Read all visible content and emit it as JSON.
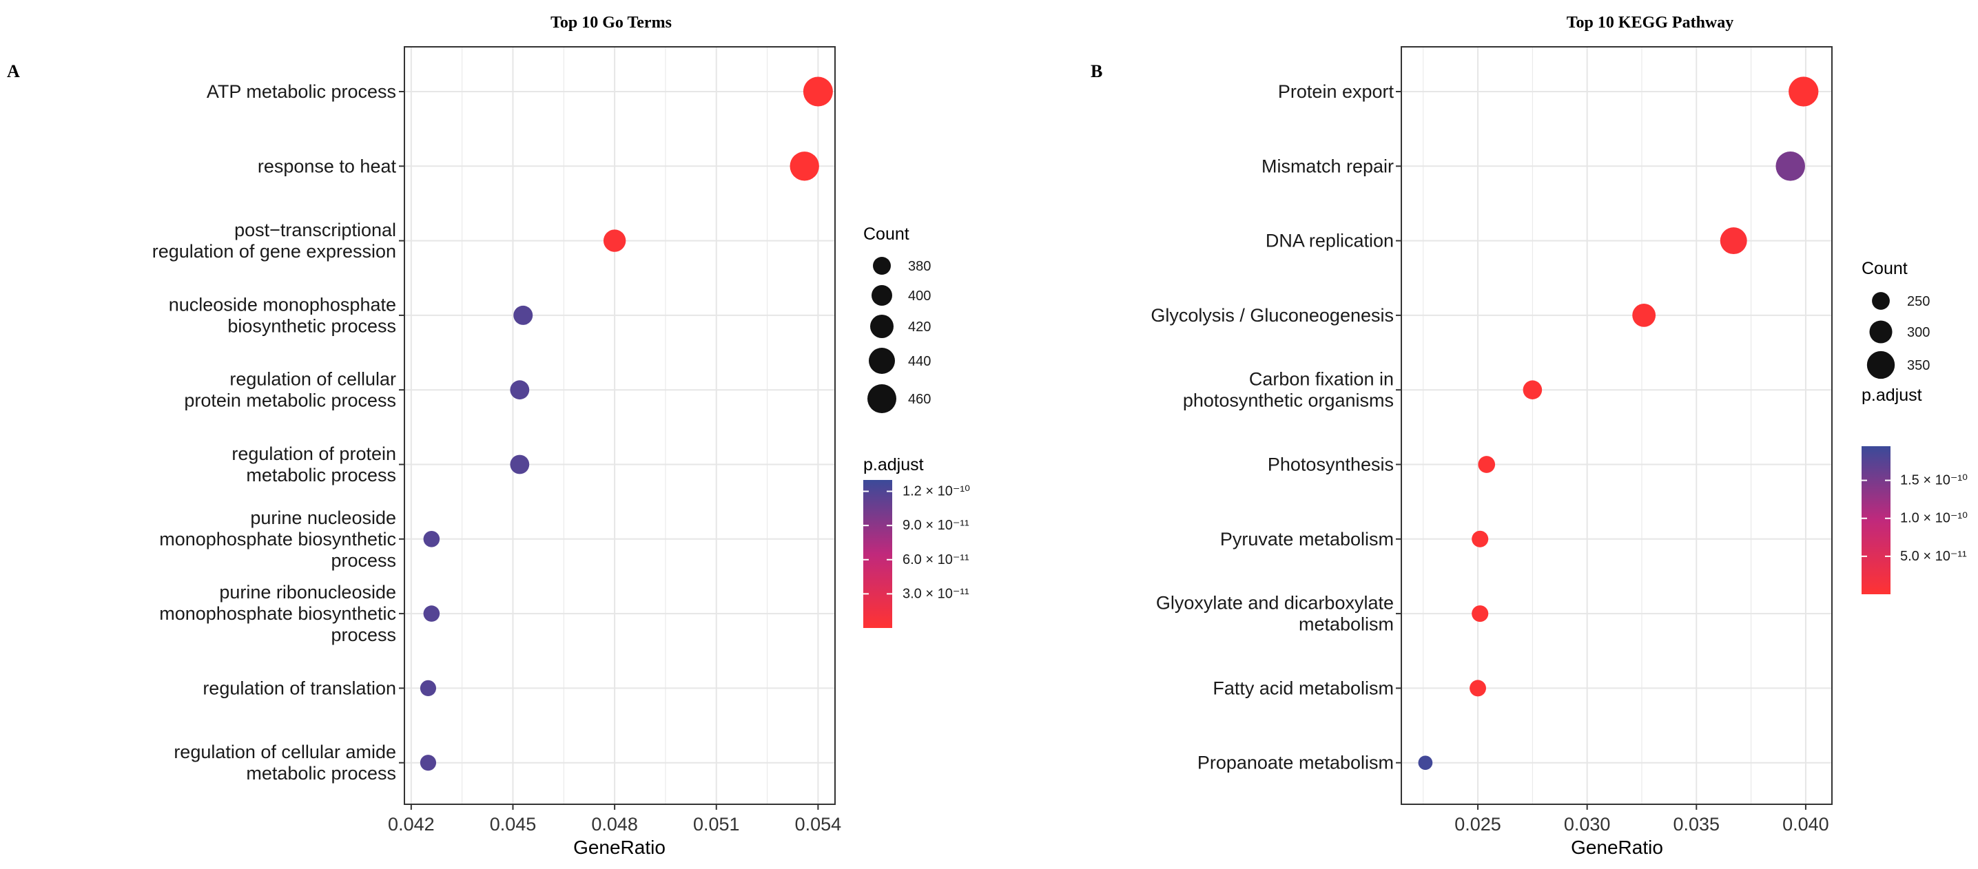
{
  "chart_data": [
    {
      "type": "scatter",
      "panel": "A",
      "title": "Top 10 Go Terms",
      "xlabel": "GeneRatio",
      "ylabel": "",
      "xlim": [
        0.0418,
        0.0545
      ],
      "xticks": [
        0.042,
        0.045,
        0.048,
        0.051,
        0.054
      ],
      "xtick_labels": [
        "0.042",
        "0.045",
        "0.048",
        "0.051",
        "0.054"
      ],
      "grid": true,
      "categories": [
        [
          "ATP metabolic process"
        ],
        [
          "response to heat"
        ],
        [
          "post−transcriptional",
          "regulation of gene expression"
        ],
        [
          "nucleoside monophosphate",
          "biosynthetic process"
        ],
        [
          "regulation of cellular",
          "protein metabolic process"
        ],
        [
          "regulation of protein",
          "metabolic process"
        ],
        [
          "purine nucleoside",
          "monophosphate biosynthetic",
          "process"
        ],
        [
          "purine ribonucleoside",
          "monophosphate biosynthetic",
          "process"
        ],
        [
          "regulation of translation"
        ],
        [
          "regulation of cellular amide",
          "metabolic process"
        ]
      ],
      "points": [
        {
          "x": 0.054,
          "count": 465,
          "p_adjust": 1e-13
        },
        {
          "x": 0.0536,
          "count": 462,
          "p_adjust": 1e-13
        },
        {
          "x": 0.048,
          "count": 412,
          "p_adjust": 2e-12
        },
        {
          "x": 0.0453,
          "count": 390,
          "p_adjust": 1.18e-10
        },
        {
          "x": 0.0452,
          "count": 389,
          "p_adjust": 1.18e-10
        },
        {
          "x": 0.0452,
          "count": 389,
          "p_adjust": 1.18e-10
        },
        {
          "x": 0.0426,
          "count": 368,
          "p_adjust": 1.18e-10
        },
        {
          "x": 0.0426,
          "count": 368,
          "p_adjust": 1.18e-10
        },
        {
          "x": 0.0425,
          "count": 366,
          "p_adjust": 1.18e-10
        },
        {
          "x": 0.0425,
          "count": 366,
          "p_adjust": 1.18e-10
        }
      ],
      "size_legend": {
        "title": "Count",
        "values": [
          380,
          400,
          420,
          440,
          460
        ],
        "labels": [
          "380",
          "400",
          "420",
          "440",
          "460"
        ]
      },
      "color_legend": {
        "title": "p.adjust",
        "range": [
          0,
          1.3e-10
        ],
        "ticks": [
          3e-11,
          6e-11,
          9e-11,
          1.2e-10
        ],
        "labels": [
          "3.0 × 10⁻¹¹",
          "6.0 × 10⁻¹¹",
          "9.0 × 10⁻¹¹",
          "1.2 × 10⁻¹⁰"
        ]
      }
    },
    {
      "type": "scatter",
      "panel": "B",
      "title": "Top 10 KEGG Pathway",
      "xlabel": "GeneRatio",
      "ylabel": "",
      "xlim": [
        0.0215,
        0.0412
      ],
      "xticks": [
        0.025,
        0.03,
        0.035,
        0.04
      ],
      "xtick_labels": [
        "0.025",
        "0.030",
        "0.035",
        "0.040"
      ],
      "grid": true,
      "categories": [
        [
          "Protein export"
        ],
        [
          "Mismatch repair"
        ],
        [
          "DNA replication"
        ],
        [
          "Glycolysis / Gluconeogenesis"
        ],
        [
          "Carbon fixation in",
          "photosynthetic organisms"
        ],
        [
          "Photosynthesis"
        ],
        [
          "Pyruvate metabolism"
        ],
        [
          "Glyoxylate and dicarboxylate",
          "metabolism"
        ],
        [
          "Fatty acid metabolism"
        ],
        [
          "Propanoate metabolism"
        ]
      ],
      "points": [
        {
          "x": 0.0399,
          "count": 370,
          "p_adjust": 1e-13
        },
        {
          "x": 0.0393,
          "count": 365,
          "p_adjust": 1.5e-10
        },
        {
          "x": 0.0367,
          "count": 340,
          "p_adjust": 5e-12
        },
        {
          "x": 0.0326,
          "count": 305,
          "p_adjust": 1e-12
        },
        {
          "x": 0.0275,
          "count": 262,
          "p_adjust": 1e-12
        },
        {
          "x": 0.0254,
          "count": 242,
          "p_adjust": 1e-12
        },
        {
          "x": 0.0251,
          "count": 238,
          "p_adjust": 1e-12
        },
        {
          "x": 0.0251,
          "count": 238,
          "p_adjust": 1e-12
        },
        {
          "x": 0.025,
          "count": 237,
          "p_adjust": 1e-12
        },
        {
          "x": 0.0226,
          "count": 215,
          "p_adjust": 1.9e-10
        }
      ],
      "size_legend": {
        "title": "Count",
        "values": [
          250,
          300,
          350
        ],
        "labels": [
          "250",
          "300",
          "350"
        ]
      },
      "color_legend": {
        "title": "p.adjust",
        "range": [
          0,
          1.95e-10
        ],
        "ticks": [
          5e-11,
          1e-10,
          1.5e-10
        ],
        "labels": [
          "5.0 × 10⁻¹¹",
          "1.0 × 10⁻¹⁰",
          "1.5 × 10⁻¹⁰"
        ]
      }
    }
  ],
  "colors": {
    "low": "#ff3333",
    "mid": "#c0297c",
    "high": "#3b4a99",
    "grid": "#e5e5e5",
    "frame": "#333333",
    "point_outline": "#000000"
  }
}
